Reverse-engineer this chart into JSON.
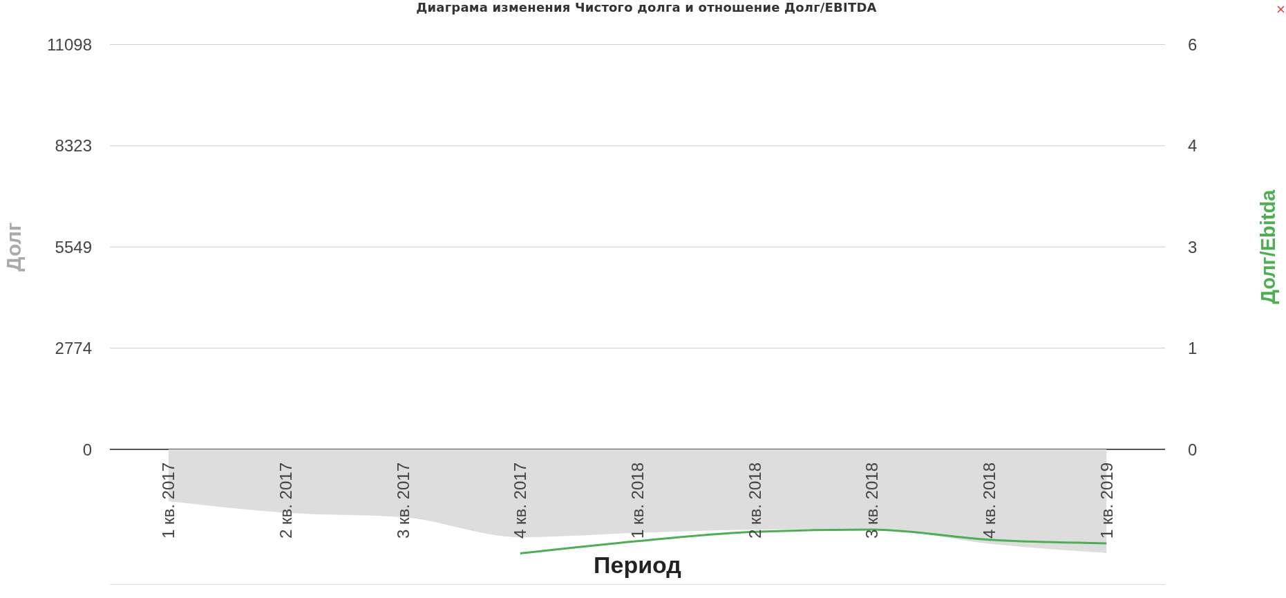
{
  "chart_data": {
    "type": "area",
    "title": "Диаграма изменения Чистого долга и отношение Долг/EBITDA",
    "xlabel": "Период",
    "ylabel": "Долг",
    "y2label": "Долг/Ebitda",
    "categories": [
      "1 кв. 2017",
      "2 кв. 2017",
      "3 кв. 2017",
      "4 кв. 2017",
      "1 кв. 2018",
      "2 кв. 2018",
      "3 кв. 2018",
      "4 кв. 2018",
      "1 кв. 2019"
    ],
    "series": [
      {
        "color": "#dddddd",
        "values": [
          -1420,
          -1740,
          -1860,
          -2410,
          -2290,
          -2200,
          -2180,
          -2590,
          -2840
        ]
      },
      {
        "type": "line",
        "axis": "y2",
        "color": "#4caf50",
        "values": [
          null,
          null,
          null,
          -1.44,
          -1.27,
          -1.14,
          -1.11,
          -1.25,
          -1.3
        ]
      }
    ],
    "ylim": [
      -3706,
      11098
    ],
    "yticks": [
      0,
      2774,
      5549,
      8323,
      11098
    ],
    "y2lim": [
      -1.87,
      5.6
    ],
    "y2ticks": [
      0,
      {
        "value": 1.4,
        "label": "1"
      },
      {
        "value": 2.8,
        "label": "3"
      },
      {
        "value": 4.2,
        "label": "4"
      },
      {
        "value": 5.6,
        "label": "6"
      }
    ],
    "grid": "y"
  }
}
